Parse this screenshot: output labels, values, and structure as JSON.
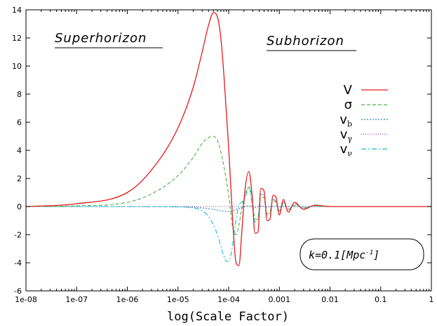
{
  "chart_data": {
    "type": "line",
    "xlabel": "log(Scale Factor)",
    "ylabel": "",
    "xscale": "log",
    "xlim": [
      1e-08,
      1
    ],
    "ylim": [
      -6,
      14
    ],
    "x_ticks": [
      {
        "value": 1e-08,
        "label": "1e-08"
      },
      {
        "value": 1e-07,
        "label": "1e-07"
      },
      {
        "value": 1e-06,
        "label": "1e-06"
      },
      {
        "value": 1e-05,
        "label": "1e-05"
      },
      {
        "value": 0.0001,
        "label": "1e-04"
      },
      {
        "value": 0.001,
        "label": "0.001"
      },
      {
        "value": 0.01,
        "label": "0.01"
      },
      {
        "value": 0.1,
        "label": "0.1"
      },
      {
        "value": 1,
        "label": "1"
      }
    ],
    "y_ticks": [
      {
        "value": -6,
        "label": "-6"
      },
      {
        "value": -4,
        "label": "-4"
      },
      {
        "value": -2,
        "label": "-2"
      },
      {
        "value": 0,
        "label": "0"
      },
      {
        "value": 2,
        "label": "2"
      },
      {
        "value": 4,
        "label": "4"
      },
      {
        "value": 6,
        "label": "6"
      },
      {
        "value": 8,
        "label": "8"
      },
      {
        "value": 10,
        "label": "10"
      },
      {
        "value": 12,
        "label": "12"
      },
      {
        "value": 14,
        "label": "14"
      }
    ],
    "grid": false,
    "legend_position": "right",
    "region_labels": {
      "left": "Superhorizon",
      "right": "Subhorizon"
    },
    "annotation": {
      "main": "k=0.1[Mpc",
      "sup": "-1",
      "close": "]"
    },
    "series": [
      {
        "name": "V",
        "sub": "",
        "color": "#e41a1c",
        "dash": "",
        "x": [
          1e-08,
          1e-07,
          1e-06,
          3e-06,
          1e-05,
          2e-05,
          3e-05,
          4e-05,
          5e-05,
          6e-05,
          7e-05,
          8e-05,
          0.0001,
          0.00012,
          0.00014,
          0.00016,
          0.00018,
          0.00021,
          0.00025,
          0.00029,
          0.00033,
          0.00038,
          0.00043,
          0.0005,
          0.00057,
          0.00065,
          0.00075,
          0.00085,
          0.001,
          0.0012,
          0.0015,
          0.002,
          0.003,
          0.005,
          0.01,
          0.1,
          1
        ],
        "y": [
          0,
          0.2,
          1.0,
          2.6,
          5.6,
          8.5,
          11.0,
          12.9,
          13.8,
          13.5,
          12.0,
          9.5,
          4.2,
          -1.0,
          -4.0,
          -4.2,
          -2.0,
          1.2,
          2.5,
          0.8,
          -1.9,
          -1.8,
          1.3,
          1.1,
          -1.0,
          -0.9,
          0.8,
          0.7,
          -0.6,
          0.5,
          -0.4,
          0.3,
          -0.2,
          0.1,
          0,
          0,
          0
        ]
      },
      {
        "name": "σ",
        "sub": "",
        "color": "#4daf4a",
        "dash": "5,3",
        "x": [
          1e-08,
          1e-07,
          1e-06,
          3e-06,
          1e-05,
          2e-05,
          3e-05,
          4e-05,
          5e-05,
          6e-05,
          7e-05,
          8e-05,
          0.0001,
          0.00012,
          0.00014,
          0.00016,
          0.00018,
          0.00021,
          0.00025,
          0.00029,
          0.00033,
          0.00038,
          0.00043,
          0.0005,
          0.00057,
          0.00065,
          0.00075,
          0.00085,
          0.001,
          0.0012,
          0.0015,
          0.002,
          0.003,
          0.005,
          0.01,
          0.1,
          1
        ],
        "y": [
          0,
          0.05,
          0.3,
          0.9,
          2.2,
          3.5,
          4.5,
          4.9,
          5.0,
          4.7,
          3.9,
          2.9,
          0.8,
          -1.5,
          -2.0,
          -1.3,
          -0.2,
          0.8,
          1.4,
          0.6,
          -0.9,
          -0.9,
          0.7,
          0.6,
          -0.5,
          -0.4,
          0.4,
          0.3,
          -0.3,
          0.2,
          -0.2,
          0.1,
          -0.1,
          0.05,
          0,
          0,
          0
        ]
      },
      {
        "name": "v",
        "sub": "b",
        "color": "#377eb8",
        "dash": "2,2",
        "x": [
          1e-08,
          1e-06,
          1e-05,
          2e-05,
          3e-05,
          5e-05,
          7e-05,
          0.0001,
          0.00012,
          0.00014,
          0.00018,
          0.00025,
          0.00033,
          0.00043,
          0.00057,
          0.00075,
          0.001,
          0.002,
          0.01,
          1
        ],
        "y": [
          0,
          0,
          -0.02,
          -0.05,
          -0.1,
          -0.2,
          -0.3,
          -0.35,
          -0.3,
          -0.2,
          -0.1,
          0.05,
          -0.05,
          0.04,
          -0.03,
          0.02,
          -0.01,
          0,
          0,
          0
        ]
      },
      {
        "name": "v",
        "sub": "γ",
        "color": "#984ea3",
        "dash": "1,2",
        "x": [
          1e-08,
          1e-06,
          1e-05,
          5e-05,
          0.0001,
          0.0002,
          0.0005,
          0.001,
          0.01,
          1
        ],
        "y": [
          0,
          0,
          0,
          0,
          0,
          0,
          0,
          0,
          0,
          0
        ]
      },
      {
        "name": "v",
        "sub": "ν",
        "color": "#17becf",
        "dash": "7,3,2,3",
        "x": [
          1e-08,
          1e-06,
          5e-06,
          1e-05,
          2e-05,
          3e-05,
          4e-05,
          5e-05,
          6e-05,
          7e-05,
          8e-05,
          9e-05,
          0.0001,
          0.00011,
          0.00012,
          0.00014,
          0.00016,
          0.00018,
          0.00021,
          0.00025,
          0.00029,
          0.00033,
          0.00038,
          0.00043,
          0.0005,
          0.00057,
          0.00065,
          0.00075,
          0.00085,
          0.001,
          0.0012,
          0.0015,
          0.002,
          0.003,
          0.005,
          0.01,
          1
        ],
        "y": [
          0,
          0,
          0,
          -0.02,
          -0.1,
          -0.3,
          -0.7,
          -1.3,
          -2.0,
          -2.8,
          -3.5,
          -3.9,
          -3.9,
          -3.5,
          -2.7,
          -0.9,
          0.1,
          0.3,
          0.6,
          1.4,
          0.2,
          -1.1,
          -0.8,
          0.9,
          0.7,
          -0.6,
          -0.5,
          0.5,
          0.4,
          -0.3,
          0.3,
          -0.2,
          0.2,
          -0.1,
          0.05,
          0,
          0
        ]
      }
    ]
  }
}
